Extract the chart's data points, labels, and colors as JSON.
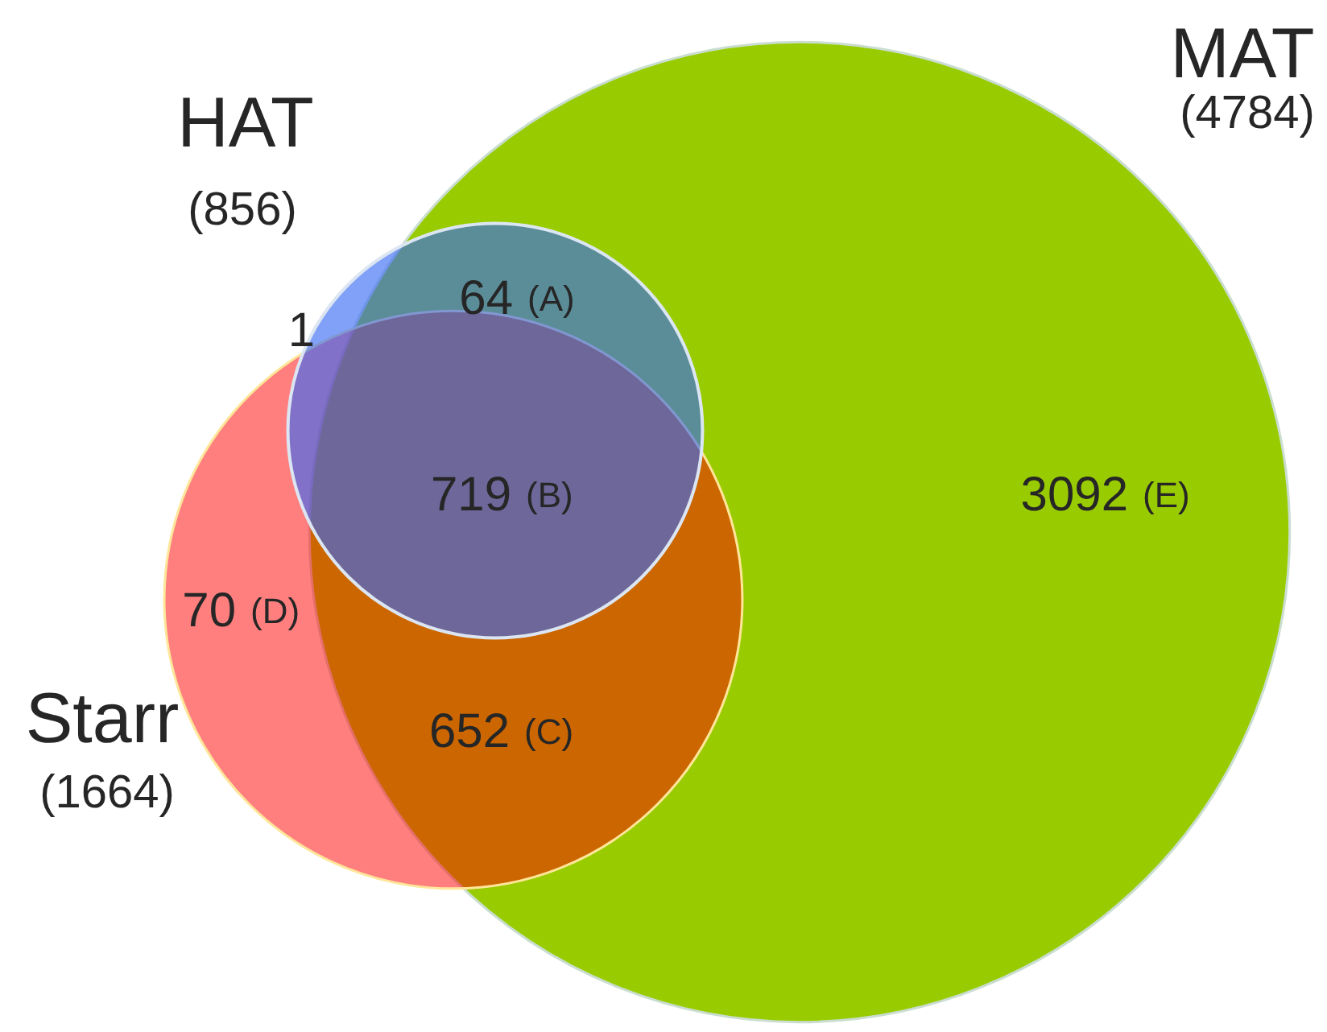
{
  "chart_data": {
    "type": "other",
    "categories": [
      "HAT",
      "MAT",
      "Starr"
    ],
    "values": [
      856,
      4784,
      1664
    ],
    "value_labels": [
      "(856)",
      "(4784)",
      "(1664)"
    ],
    "colors": [
      "#3768f3",
      "#99cc00",
      "#ff0000"
    ],
    "annotations": [
      "1",
      "64 (A)",
      "719 (B)",
      "652 (C)",
      "70 (D)",
      "3092 (E)"
    ]
  }
}
